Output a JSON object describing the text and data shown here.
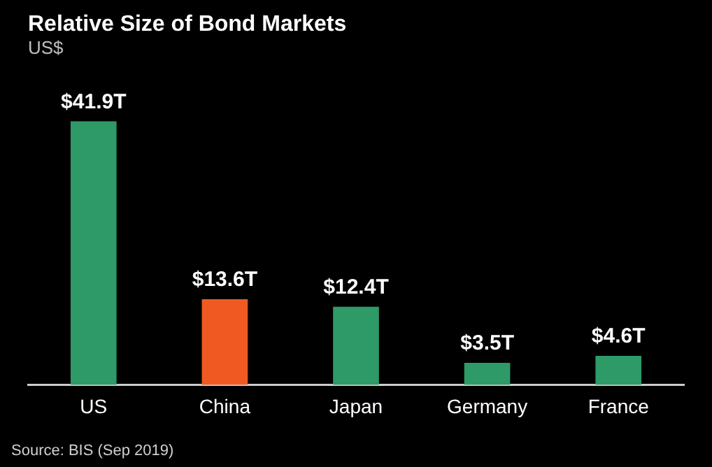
{
  "chart_data": {
    "type": "bar",
    "title": "Relative Size of Bond Markets",
    "subtitle": "US$",
    "categories": [
      "US",
      "China",
      "Japan",
      "Germany",
      "France"
    ],
    "values": [
      41.9,
      13.6,
      12.4,
      3.5,
      4.6
    ],
    "value_labels": [
      "$41.9T",
      "$13.6T",
      "$12.4T",
      "$3.5T",
      "$4.6T"
    ],
    "colors": [
      "#2e9a68",
      "#f05a22",
      "#2e9a68",
      "#2e9a68",
      "#2e9a68"
    ],
    "annotations": [
      "Source: BIS (Sep 2019)"
    ],
    "legend": false
  }
}
